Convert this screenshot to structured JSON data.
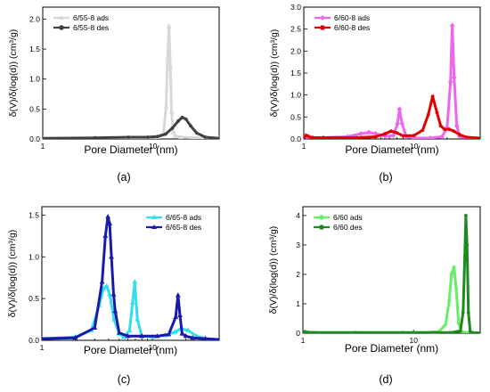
{
  "chart_data": [
    {
      "panel_label": "(a)",
      "type": "line",
      "xscale": "log",
      "xlim": [
        1,
        40
      ],
      "ylim": [
        0,
        2.2
      ],
      "xlabel": "Pore Diameter (nm)",
      "ylabel": "δ(V)/δ(log(d)) (cm³/g)",
      "xticks": [
        1,
        10
      ],
      "yticks": [
        "0.0",
        "0.5",
        "1.0",
        "1.5",
        "2.0"
      ],
      "legend_position": "top-left",
      "series": [
        {
          "name": "6/55-8 ads",
          "color": "#d8d8d8",
          "marker": "triangle",
          "x": [
            1,
            3,
            6,
            9,
            11,
            12.5,
            13.2,
            13.6,
            14.0,
            14.4,
            14.8,
            15.3,
            16,
            18,
            25,
            40
          ],
          "y": [
            0.01,
            0.01,
            0.02,
            0.02,
            0.03,
            0.1,
            0.55,
            1.35,
            1.88,
            1.2,
            0.45,
            0.12,
            0.05,
            0.03,
            0.02,
            0.01
          ]
        },
        {
          "name": "6/55-8 des",
          "color": "#404040",
          "marker": "circle",
          "x": [
            1,
            3,
            6,
            9,
            11,
            13,
            15,
            17,
            18.5,
            20,
            22,
            25,
            30,
            40
          ],
          "y": [
            0.01,
            0.02,
            0.03,
            0.03,
            0.04,
            0.08,
            0.18,
            0.3,
            0.36,
            0.33,
            0.22,
            0.1,
            0.03,
            0.01
          ]
        }
      ]
    },
    {
      "panel_label": "(b)",
      "type": "line",
      "xscale": "log",
      "xlim": [
        1,
        40
      ],
      "ylim": [
        0,
        3.0
      ],
      "xlabel": "Pore Diameter (nm)",
      "ylabel": "δ(V)/δ(log(d)) (cm³/g)",
      "xticks": [
        1,
        10
      ],
      "yticks": [
        "0.0",
        "0.5",
        "1.0",
        "1.5",
        "2.0",
        "2.5",
        "3.0"
      ],
      "legend_position": "top-left",
      "series": [
        {
          "name": "6/60-8 ads",
          "color": "#ee66ee",
          "marker": "diamond",
          "x": [
            1,
            1.05,
            1.1,
            1.2,
            1.5,
            2.5,
            3.3,
            3.9,
            4.5,
            5.5,
            6.5,
            7.1,
            7.4,
            7.8,
            8.5,
            10,
            14,
            18,
            20,
            21.5,
            22.3,
            23.2,
            24.5,
            26,
            30,
            40
          ],
          "y": [
            0.03,
            0.08,
            0.05,
            0.03,
            0.03,
            0.05,
            0.12,
            0.15,
            0.12,
            0.06,
            0.08,
            0.35,
            0.68,
            0.35,
            0.06,
            0.02,
            0.02,
            0.05,
            0.25,
            1.3,
            2.58,
            1.4,
            0.3,
            0.06,
            0.02,
            0.01
          ]
        },
        {
          "name": "6/60-8 des",
          "color": "#e00000",
          "marker": "circle",
          "x": [
            1,
            1.05,
            1.1,
            1.2,
            1.5,
            3,
            4.5,
            5.5,
            6.2,
            7,
            8,
            10,
            12,
            13.5,
            14.8,
            16.2,
            17.5,
            19,
            21,
            23,
            26,
            30,
            40
          ],
          "y": [
            0.03,
            0.08,
            0.06,
            0.03,
            0.03,
            0.03,
            0.05,
            0.12,
            0.18,
            0.14,
            0.07,
            0.08,
            0.2,
            0.55,
            0.97,
            0.6,
            0.3,
            0.22,
            0.22,
            0.18,
            0.1,
            0.04,
            0.02
          ]
        }
      ]
    },
    {
      "panel_label": "(c)",
      "type": "line",
      "xscale": "log",
      "xlim": [
        1,
        40
      ],
      "ylim": [
        0,
        1.6
      ],
      "xlabel": "Pore Diameter (nm)",
      "ylabel": "δ(V)/δ(log(d)) (cm³/g)",
      "xticks": [
        1,
        10
      ],
      "yticks": [
        "0.0",
        "0.5",
        "1.0",
        "1.5"
      ],
      "legend_position": "top-right",
      "series": [
        {
          "name": "6/65-8 ads",
          "color": "#33ddee",
          "marker": "triangle",
          "x": [
            1,
            2,
            2.8,
            3.3,
            3.6,
            3.85,
            4.1,
            4.5,
            5,
            5.5,
            6.2,
            6.6,
            6.9,
            7.3,
            8,
            10,
            13,
            16,
            18,
            21,
            25,
            30,
            40
          ],
          "y": [
            0.02,
            0.04,
            0.12,
            0.42,
            0.62,
            0.65,
            0.55,
            0.25,
            0.08,
            0.04,
            0.12,
            0.45,
            0.7,
            0.25,
            0.05,
            0.04,
            0.06,
            0.1,
            0.14,
            0.12,
            0.05,
            0.02,
            0.01
          ]
        },
        {
          "name": "6/65-8 des",
          "color": "#1a1aaa",
          "marker": "triangle",
          "x": [
            1,
            2,
            3,
            3.5,
            3.75,
            3.95,
            4.1,
            4.25,
            4.45,
            4.6,
            5,
            6,
            8,
            11,
            14,
            16.2,
            17,
            17.7,
            18.5,
            20,
            23,
            30,
            40
          ],
          "y": [
            0.02,
            0.03,
            0.15,
            0.7,
            1.25,
            1.48,
            1.4,
            1.0,
            0.55,
            0.35,
            0.09,
            0.05,
            0.05,
            0.05,
            0.07,
            0.28,
            0.54,
            0.3,
            0.08,
            0.05,
            0.03,
            0.02,
            0.01
          ]
        }
      ]
    },
    {
      "panel_label": "(d)",
      "type": "line",
      "xscale": "log",
      "xlim": [
        1,
        40
      ],
      "ylim": [
        0,
        4.3
      ],
      "xlabel": "Pore Diameter (nm)",
      "ylabel": "δ(V)/δ(log(d)) (cm³/g)",
      "xticks": [
        1,
        10
      ],
      "yticks": [
        "0",
        "1",
        "2",
        "3",
        "4"
      ],
      "legend_position": "top-left",
      "series": [
        {
          "name": "6/60 ads",
          "color": "#66ee66",
          "marker": "circle",
          "x": [
            1,
            1.04,
            1.1,
            1.3,
            3,
            8,
            13,
            17,
            19.5,
            21,
            22,
            23.2,
            24.3,
            25.5,
            27,
            30,
            40
          ],
          "y": [
            0.02,
            0.05,
            0.03,
            0.02,
            0.02,
            0.02,
            0.02,
            0.05,
            0.3,
            1.1,
            2.0,
            2.25,
            1.5,
            0.35,
            0.06,
            0.02,
            0.01
          ]
        },
        {
          "name": "6/60 des",
          "color": "#1d8a1d",
          "marker": "circle",
          "x": [
            1,
            1.04,
            1.1,
            1.3,
            3,
            8,
            15,
            22,
            26.5,
            28,
            29,
            29.7,
            30.4,
            31.3,
            32.5,
            34,
            40
          ],
          "y": [
            0.02,
            0.05,
            0.03,
            0.02,
            0.02,
            0.02,
            0.02,
            0.02,
            0.08,
            0.7,
            2.6,
            4.0,
            3.0,
            0.7,
            0.06,
            0.02,
            0.01
          ]
        }
      ]
    }
  ]
}
